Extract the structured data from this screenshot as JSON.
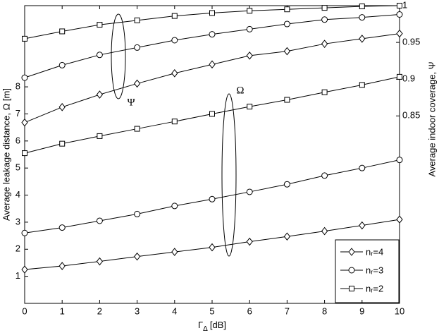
{
  "chart_data": {
    "type": "line",
    "xlabel": {
      "symbol": "Γ",
      "subscript": "Δ",
      "unit": "[dB]"
    },
    "ylabel": "Average leakage distance,  Ω  [m]",
    "y2label": "Average indoor coverage,  Ψ",
    "annotations": [
      "Ψ",
      "Ω"
    ],
    "x": [
      0,
      1,
      2,
      3,
      4,
      5,
      6,
      7,
      8,
      9,
      10
    ],
    "xlim": [
      0,
      10
    ],
    "xticks": [
      0,
      1,
      2,
      3,
      4,
      5,
      6,
      7,
      8,
      9,
      10
    ],
    "ylim": [
      0,
      11
    ],
    "yticks": [
      1,
      2,
      3,
      4,
      5,
      6,
      7,
      8
    ],
    "y2lim": [
      0.595,
      1
    ],
    "y2ticks": [
      0.85,
      0.9,
      0.95,
      1
    ],
    "legend": "lower right",
    "series": [
      {
        "name": "nᵣ=4",
        "color": "#000000",
        "marker": "diamond",
        "values": [
          1.25,
          1.38,
          1.55,
          1.73,
          1.9,
          2.07,
          2.28,
          2.47,
          2.67,
          2.88,
          3.1
        ],
        "values_y2": [
          0.841,
          0.862,
          0.879,
          0.894,
          0.908,
          0.92,
          0.932,
          0.938,
          0.948,
          0.955,
          0.962
        ]
      },
      {
        "name": "nᵣ=3",
        "color": "#000000",
        "marker": "circle",
        "values": [
          2.6,
          2.8,
          3.05,
          3.3,
          3.6,
          3.85,
          4.12,
          4.4,
          4.72,
          5.0,
          5.3
        ],
        "values_y2": [
          0.902,
          0.919,
          0.933,
          0.943,
          0.953,
          0.961,
          0.968,
          0.975,
          0.981,
          0.984,
          0.988
        ]
      },
      {
        "name": "nᵣ=2",
        "color": "#000000",
        "marker": "square",
        "values": [
          5.55,
          5.9,
          6.18,
          6.45,
          6.72,
          7.0,
          7.27,
          7.52,
          7.8,
          8.07,
          8.37
        ],
        "values_y2": [
          0.955,
          0.965,
          0.974,
          0.98,
          0.986,
          0.99,
          0.993,
          0.995,
          0.997,
          0.999,
          1.0
        ]
      }
    ]
  }
}
